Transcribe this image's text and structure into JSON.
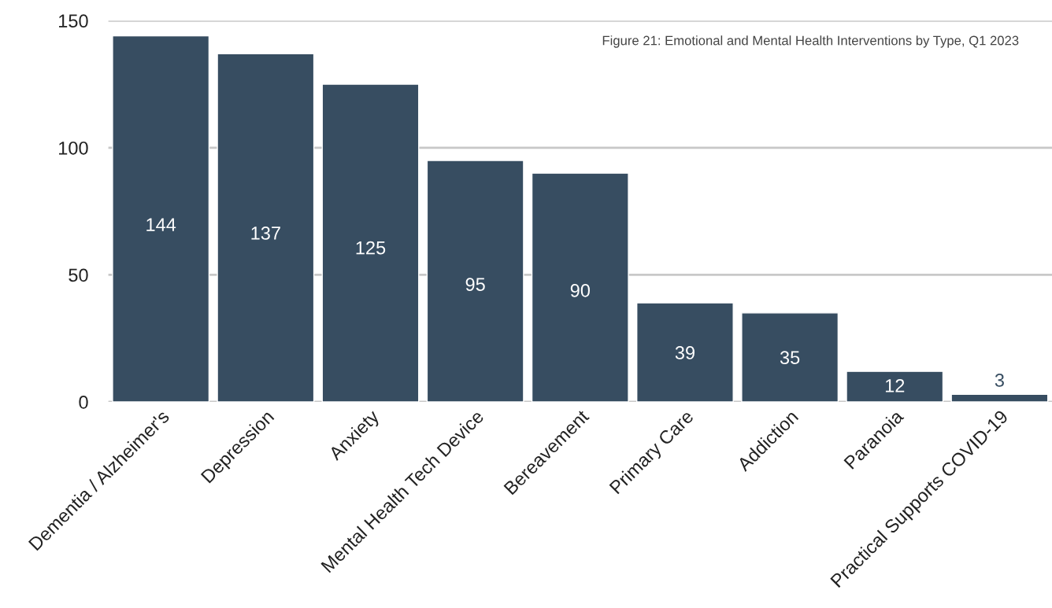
{
  "chart_data": {
    "type": "bar",
    "title": "Figure 21: Emotional and Mental Health Interventions by Type, Q1 2023",
    "categories": [
      "Dementia / Alzheimer's",
      "Depression",
      "Anxiety",
      "Mental Health Tech Device",
      "Bereavement",
      "Primary Care",
      "Addiction",
      "Paranoia",
      "Practical Supports COVID-19"
    ],
    "values": [
      144,
      137,
      125,
      95,
      90,
      39,
      35,
      12,
      3
    ],
    "color": "#374d61",
    "ylim": [
      0,
      150
    ],
    "yticks": [
      0,
      50,
      100,
      150
    ],
    "grid": "y",
    "data_labels": true
  }
}
